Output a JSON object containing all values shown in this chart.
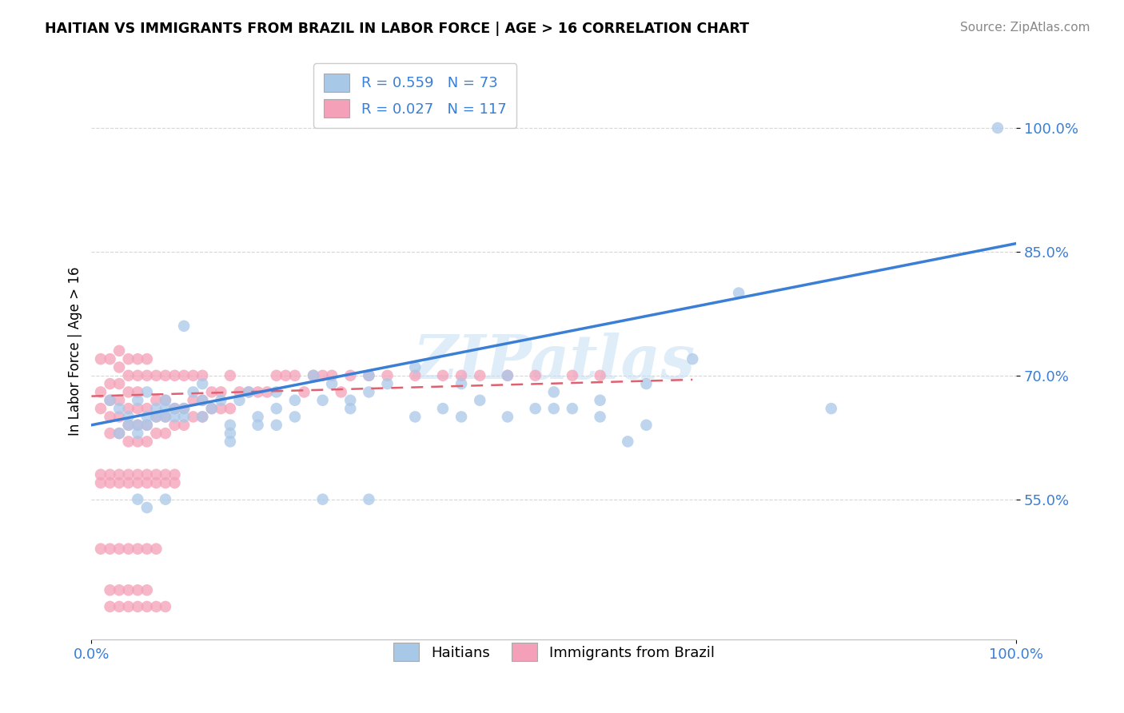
{
  "title": "HAITIAN VS IMMIGRANTS FROM BRAZIL IN LABOR FORCE | AGE > 16 CORRELATION CHART",
  "source": "Source: ZipAtlas.com",
  "ylabel": "In Labor Force | Age > 16",
  "xlim": [
    0.0,
    1.0
  ],
  "ylim": [
    0.38,
    1.08
  ],
  "ytick_labels": [
    "55.0%",
    "70.0%",
    "85.0%",
    "100.0%"
  ],
  "ytick_values": [
    0.55,
    0.7,
    0.85,
    1.0
  ],
  "haitian_color": "#a8c8e8",
  "brazil_color": "#f4a0b8",
  "haitian_line_color": "#3a7fd5",
  "brazil_line_color": "#e06070",
  "tick_color": "#3a7fd5",
  "watermark": "ZIPatlas",
  "legend_R1": "R = 0.559",
  "legend_N1": "N = 73",
  "legend_R2": "R = 0.027",
  "legend_N2": "N = 117",
  "haitian_line_x0": 0.0,
  "haitian_line_y0": 0.64,
  "haitian_line_x1": 1.0,
  "haitian_line_y1": 0.86,
  "brazil_line_x0": 0.0,
  "brazil_line_y0": 0.675,
  "brazil_line_x1": 0.65,
  "brazil_line_y1": 0.695,
  "haitian_x": [
    0.02,
    0.03,
    0.04,
    0.05,
    0.05,
    0.06,
    0.06,
    0.07,
    0.08,
    0.08,
    0.09,
    0.1,
    0.11,
    0.12,
    0.13,
    0.14,
    0.15,
    0.16,
    0.17,
    0.18,
    0.2,
    0.22,
    0.24,
    0.26,
    0.28,
    0.3,
    0.32,
    0.35,
    0.38,
    0.4,
    0.42,
    0.45,
    0.48,
    0.5,
    0.52,
    0.55,
    0.58,
    0.6,
    0.65,
    0.7,
    0.03,
    0.04,
    0.05,
    0.06,
    0.07,
    0.08,
    0.09,
    0.1,
    0.12,
    0.15,
    0.18,
    0.2,
    0.22,
    0.25,
    0.28,
    0.3,
    0.35,
    0.4,
    0.45,
    0.5,
    0.05,
    0.06,
    0.08,
    0.1,
    0.12,
    0.15,
    0.2,
    0.25,
    0.3,
    0.55,
    0.6,
    0.8,
    0.98
  ],
  "haitian_y": [
    0.67,
    0.66,
    0.65,
    0.64,
    0.67,
    0.65,
    0.68,
    0.66,
    0.67,
    0.65,
    0.66,
    0.65,
    0.68,
    0.67,
    0.66,
    0.67,
    0.64,
    0.67,
    0.68,
    0.65,
    0.68,
    0.67,
    0.7,
    0.69,
    0.67,
    0.7,
    0.69,
    0.71,
    0.66,
    0.69,
    0.67,
    0.7,
    0.66,
    0.68,
    0.66,
    0.67,
    0.62,
    0.69,
    0.72,
    0.8,
    0.63,
    0.64,
    0.63,
    0.64,
    0.65,
    0.66,
    0.65,
    0.66,
    0.65,
    0.63,
    0.64,
    0.66,
    0.65,
    0.67,
    0.66,
    0.68,
    0.65,
    0.65,
    0.65,
    0.66,
    0.55,
    0.54,
    0.55,
    0.76,
    0.69,
    0.62,
    0.64,
    0.55,
    0.55,
    0.65,
    0.64,
    0.66,
    1.0
  ],
  "brazil_x": [
    0.01,
    0.01,
    0.01,
    0.02,
    0.02,
    0.02,
    0.02,
    0.02,
    0.03,
    0.03,
    0.03,
    0.03,
    0.03,
    0.03,
    0.04,
    0.04,
    0.04,
    0.04,
    0.04,
    0.04,
    0.05,
    0.05,
    0.05,
    0.05,
    0.05,
    0.05,
    0.06,
    0.06,
    0.06,
    0.06,
    0.06,
    0.07,
    0.07,
    0.07,
    0.07,
    0.08,
    0.08,
    0.08,
    0.08,
    0.09,
    0.09,
    0.09,
    0.1,
    0.1,
    0.1,
    0.11,
    0.11,
    0.11,
    0.12,
    0.12,
    0.12,
    0.13,
    0.13,
    0.14,
    0.14,
    0.15,
    0.15,
    0.16,
    0.17,
    0.18,
    0.19,
    0.2,
    0.21,
    0.22,
    0.23,
    0.24,
    0.25,
    0.26,
    0.27,
    0.28,
    0.3,
    0.32,
    0.35,
    0.38,
    0.4,
    0.42,
    0.45,
    0.48,
    0.52,
    0.55,
    0.01,
    0.01,
    0.02,
    0.02,
    0.03,
    0.03,
    0.04,
    0.04,
    0.05,
    0.05,
    0.06,
    0.06,
    0.07,
    0.07,
    0.08,
    0.08,
    0.09,
    0.09,
    0.01,
    0.02,
    0.03,
    0.04,
    0.05,
    0.06,
    0.07,
    0.02,
    0.03,
    0.04,
    0.05,
    0.06,
    0.02,
    0.03,
    0.04,
    0.05,
    0.06,
    0.07,
    0.08
  ],
  "brazil_y": [
    0.66,
    0.68,
    0.72,
    0.63,
    0.65,
    0.67,
    0.69,
    0.72,
    0.63,
    0.65,
    0.67,
    0.69,
    0.71,
    0.73,
    0.62,
    0.64,
    0.66,
    0.68,
    0.7,
    0.72,
    0.62,
    0.64,
    0.66,
    0.68,
    0.7,
    0.72,
    0.62,
    0.64,
    0.66,
    0.7,
    0.72,
    0.63,
    0.65,
    0.67,
    0.7,
    0.63,
    0.65,
    0.67,
    0.7,
    0.64,
    0.66,
    0.7,
    0.64,
    0.66,
    0.7,
    0.65,
    0.67,
    0.7,
    0.65,
    0.67,
    0.7,
    0.66,
    0.68,
    0.66,
    0.68,
    0.66,
    0.7,
    0.68,
    0.68,
    0.68,
    0.68,
    0.7,
    0.7,
    0.7,
    0.68,
    0.7,
    0.7,
    0.7,
    0.68,
    0.7,
    0.7,
    0.7,
    0.7,
    0.7,
    0.7,
    0.7,
    0.7,
    0.7,
    0.7,
    0.7,
    0.57,
    0.58,
    0.57,
    0.58,
    0.57,
    0.58,
    0.57,
    0.58,
    0.57,
    0.58,
    0.57,
    0.58,
    0.57,
    0.58,
    0.57,
    0.58,
    0.57,
    0.58,
    0.49,
    0.49,
    0.49,
    0.49,
    0.49,
    0.49,
    0.49,
    0.44,
    0.44,
    0.44,
    0.44,
    0.44,
    0.42,
    0.42,
    0.42,
    0.42,
    0.42,
    0.42,
    0.42
  ]
}
